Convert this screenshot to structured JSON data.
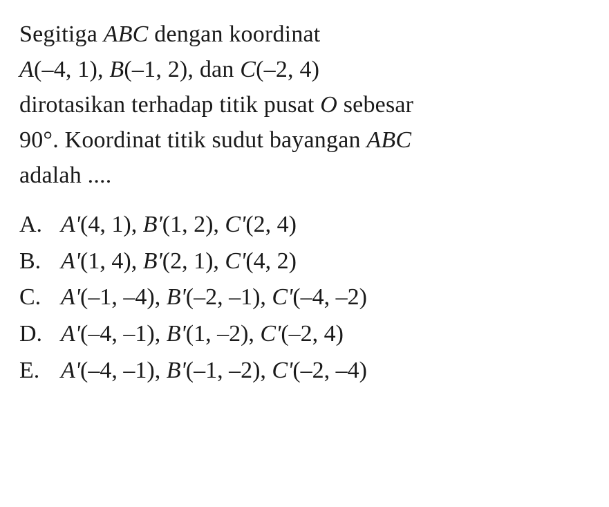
{
  "question": {
    "line1_pre": "Segitiga ",
    "line1_abc": "ABC",
    "line1_post": " dengan koordinat",
    "line2_A": "A",
    "line2_Acoord": "(–4, 1), ",
    "line2_B": "B",
    "line2_Bcoord": "(–1, 2), dan ",
    "line2_C": "C",
    "line2_Ccoord": "(–2, 4)",
    "line3_pre": "dirotasikan terhadap titik pusat ",
    "line3_O": "O",
    "line3_post": " sebesar",
    "line4_pre": "90°. Koordinat titik sudut bayangan ",
    "line4_abc": "ABC",
    "line5": "adalah ...."
  },
  "options": [
    {
      "letter": "A.",
      "A": "A'",
      "Acoord": "(4, 1), ",
      "B": "B'",
      "Bcoord": "(1, 2), ",
      "C": "C'",
      "Ccoord": "(2, 4)"
    },
    {
      "letter": "B.",
      "A": "A'",
      "Acoord": "(1, 4), ",
      "B": "B'",
      "Bcoord": "(2, 1), ",
      "C": "C'",
      "Ccoord": "(4, 2)"
    },
    {
      "letter": "C.",
      "A": "A'",
      "Acoord": "(–1, –4), ",
      "B": "B'",
      "Bcoord": "(–2, –1), ",
      "C": "C'",
      "Ccoord": "(–4, –2)"
    },
    {
      "letter": "D.",
      "A": "A'",
      "Acoord": "(–4, –1), ",
      "B": "B'",
      "Bcoord": "(1, –2), ",
      "C": "C'",
      "Ccoord": "(–2, 4)"
    },
    {
      "letter": "E.",
      "A": "A'",
      "Acoord": "(–4, –1), ",
      "B": "B'",
      "Bcoord": "(–1, –2), ",
      "C": "C'",
      "Ccoord": "(–2, –4)"
    }
  ]
}
